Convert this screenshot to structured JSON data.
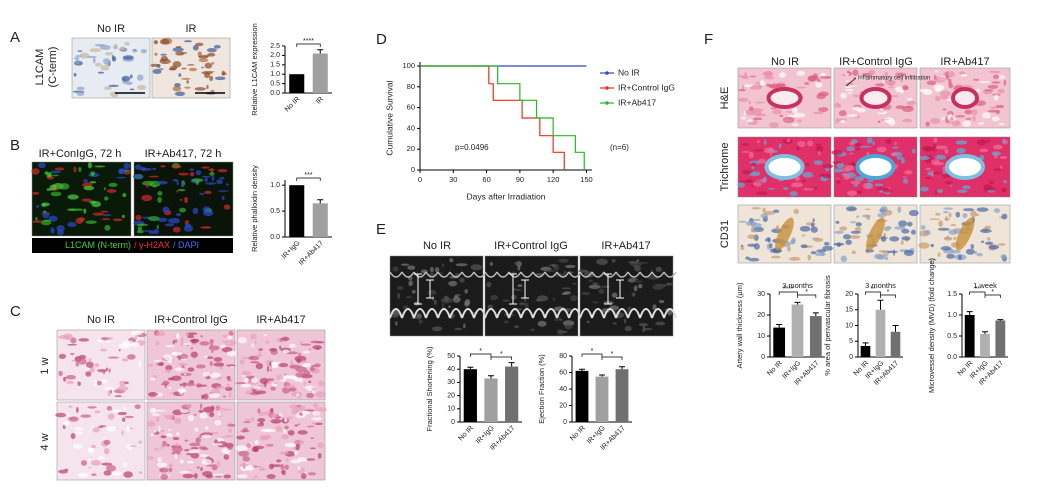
{
  "panels": {
    "A": {
      "label": "A",
      "row_label": [
        "L1CAM",
        "(C-term)"
      ],
      "columns": [
        "No IR",
        "IR"
      ]
    },
    "B": {
      "label": "B",
      "columns": [
        "IR+ConIgG, 72 h",
        "IR+Ab417, 72 h"
      ],
      "stain_legend": [
        "L1CAM (N-term)",
        "/ γ-H2AX",
        "/ DAPI"
      ]
    },
    "C": {
      "label": "C",
      "columns": [
        "No IR",
        "IR+Control IgG",
        "IR+Ab417"
      ],
      "rows": [
        "1 w",
        "4 w"
      ]
    },
    "D": {
      "label": "D"
    },
    "E": {
      "label": "E",
      "columns": [
        "No IR",
        "IR+Control IgG",
        "IR+Ab417"
      ]
    },
    "F": {
      "label": "F",
      "columns": [
        "No IR",
        "IR+Control IgG",
        "IR+Ab417"
      ],
      "rows": [
        "H&E",
        "Trichrome",
        "CD31"
      ],
      "annotation": "inflammatory cell infiltration"
    }
  },
  "chart_data": [
    {
      "type": "bar",
      "ylabel": "Relative L1CAM expression",
      "categories": [
        "No IR",
        "IR"
      ],
      "values": [
        1.0,
        2.1
      ],
      "errors": [
        0,
        0.2
      ],
      "colors": [
        "#000000",
        "#a0a0a0"
      ],
      "ylim": [
        0,
        2.5
      ],
      "yticks": [
        {
          "value": 0,
          "label": "0.0"
        },
        {
          "value": 0.5,
          "label": "0.5"
        },
        {
          "value": 1,
          "label": "1.0"
        },
        {
          "value": 1.5,
          "label": "1.5"
        },
        {
          "value": 2,
          "label": "2.0"
        },
        {
          "value": 2.5,
          "label": "2.5"
        }
      ],
      "significance": [
        "****"
      ]
    },
    {
      "type": "bar",
      "ylabel": "Relative phalloidin density",
      "categories": [
        "IR+IgG",
        "IR+Ab417"
      ],
      "values": [
        1.0,
        0.65
      ],
      "errors": [
        0,
        0.07
      ],
      "colors": [
        "#000000",
        "#a0a0a0"
      ],
      "ylim": [
        0,
        1.1
      ],
      "yticks": [
        {
          "value": 0,
          "label": "0.0"
        },
        {
          "value": 0.5,
          "label": "0.5"
        },
        {
          "value": 1,
          "label": "1.0"
        }
      ],
      "significance": [
        "***"
      ]
    },
    {
      "type": "line",
      "xlabel": "Days after Irradiation",
      "ylabel": "Cumulative Survival",
      "annotations": [
        "p=0.0496",
        "(n=6)"
      ],
      "xlim": [
        0,
        155
      ],
      "xticks": [
        0,
        30,
        60,
        90,
        120,
        150
      ],
      "ylim": [
        0,
        100
      ],
      "yticks": [
        0,
        20,
        40,
        60,
        80,
        100
      ],
      "series": [
        {
          "name": "No IR",
          "color": "#3344cc",
          "x": [
            0,
            150
          ],
          "values": [
            100,
            100
          ]
        },
        {
          "name": "IR+Control IgG",
          "color": "#e8301c",
          "x": [
            0,
            62,
            62,
            66,
            66,
            92,
            92,
            108,
            108,
            120,
            120,
            130,
            130
          ],
          "values": [
            100,
            100,
            83,
            83,
            67,
            67,
            50,
            50,
            33,
            33,
            17,
            17,
            0
          ]
        },
        {
          "name": "IR+Ab417",
          "color": "#22bb22",
          "x": [
            0,
            70,
            70,
            90,
            90,
            105,
            105,
            120,
            120,
            140,
            140,
            148,
            148
          ],
          "values": [
            100,
            100,
            83,
            83,
            67,
            67,
            50,
            50,
            33,
            33,
            17,
            17,
            0
          ]
        }
      ]
    },
    {
      "type": "bar",
      "ylabel": "Fractional Shortening (%)",
      "categories": [
        "No IR",
        "IR+IgG",
        "IR+Ab417"
      ],
      "values": [
        40,
        33,
        42
      ],
      "errors": [
        1.5,
        2,
        3
      ],
      "colors": [
        "#000000",
        "#a0a0a0",
        "#707070"
      ],
      "ylim": [
        0,
        50
      ],
      "yticks": [
        0,
        10,
        20,
        30,
        40,
        50
      ],
      "significance": [
        "*",
        "*"
      ]
    },
    {
      "type": "bar",
      "ylabel": "Ejection Fraction (%)",
      "categories": [
        "No IR",
        "IR+IgG",
        "IR+Ab417"
      ],
      "values": [
        62,
        55,
        64
      ],
      "errors": [
        2,
        2,
        3
      ],
      "colors": [
        "#000000",
        "#a0a0a0",
        "#707070"
      ],
      "ylim": [
        0,
        80
      ],
      "yticks": [
        0,
        20,
        40,
        60,
        80
      ],
      "significance": [
        "*",
        "*"
      ]
    },
    {
      "type": "bar",
      "title": "3 months",
      "ylabel": "Artery wall thickness (µm)",
      "categories": [
        "No IR",
        "IR+IgG",
        "IR+Ab417"
      ],
      "values": [
        14,
        25,
        19.5
      ],
      "errors": [
        1.5,
        1,
        1.5
      ],
      "colors": [
        "#000000",
        "#b0b0b0",
        "#707070"
      ],
      "ylim": [
        0,
        30
      ],
      "yticks": [
        0,
        10,
        20,
        30
      ],
      "significance": [
        "****",
        "*"
      ]
    },
    {
      "type": "bar",
      "title": "3 months",
      "ylabel": "% area of perivascular fibrosis",
      "categories": [
        "No IR",
        "IR+IgG",
        "IR+Ab417"
      ],
      "values": [
        3.5,
        15,
        8
      ],
      "errors": [
        1,
        3,
        2
      ],
      "colors": [
        "#000000",
        "#b0b0b0",
        "#707070"
      ],
      "ylim": [
        0,
        20
      ],
      "yticks": [
        0,
        5,
        10,
        15,
        20
      ],
      "significance": [
        "**",
        "*"
      ]
    },
    {
      "type": "bar",
      "title": "1 week",
      "ylabel": "Microvessel density (MVD) (fold change)",
      "categories": [
        "No IR",
        "IR+IgG",
        "IR+Ab417"
      ],
      "values": [
        1.0,
        0.55,
        0.87
      ],
      "errors": [
        0.08,
        0.05,
        0.02
      ],
      "colors": [
        "#000000",
        "#b0b0b0",
        "#707070"
      ],
      "ylim": [
        0,
        1.5
      ],
      "yticks": [
        {
          "value": 0,
          "label": "0.0"
        },
        {
          "value": 0.5,
          "label": "0.5"
        },
        {
          "value": 1,
          "label": "1.0"
        },
        {
          "value": 1.5,
          "label": "1.5"
        }
      ],
      "significance": [
        "**",
        "*"
      ]
    }
  ]
}
